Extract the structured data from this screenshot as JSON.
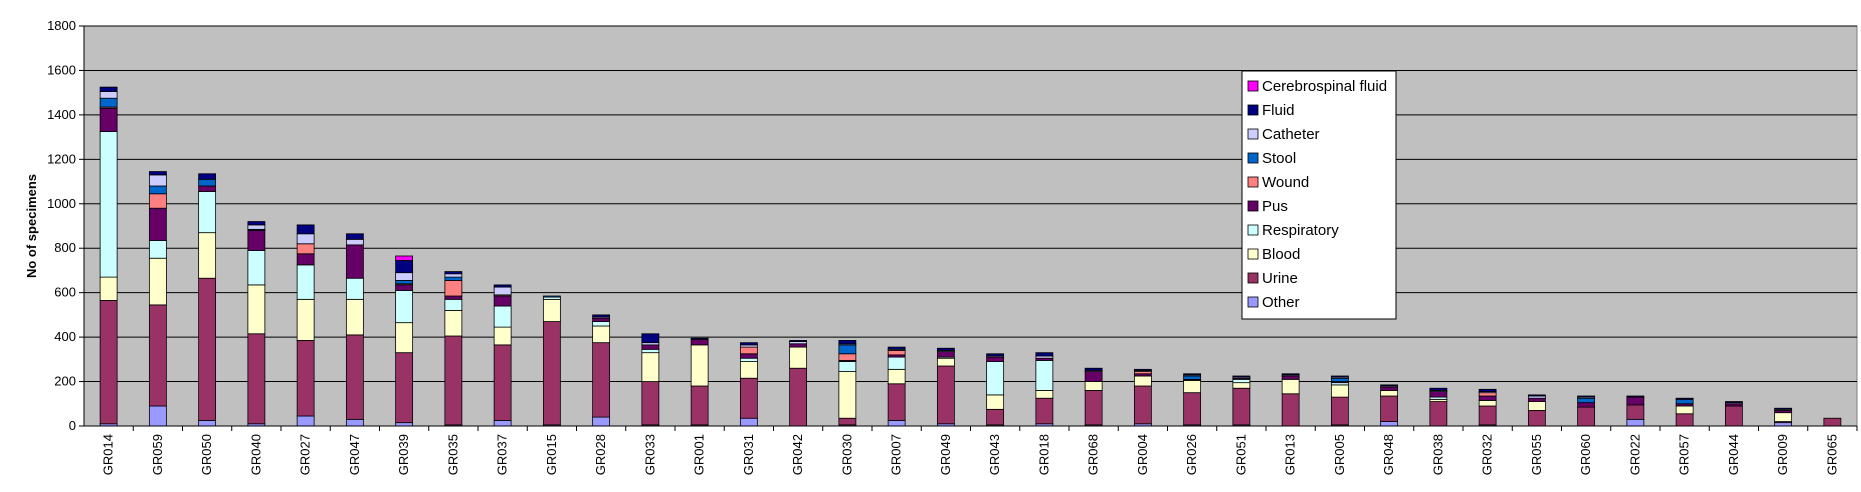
{
  "chart_data": {
    "type": "bar",
    "stacked": true,
    "ylabel": "No of specimens",
    "xlabel": "",
    "ylim": [
      0,
      1800
    ],
    "yticks": [
      0,
      200,
      400,
      600,
      800,
      1000,
      1200,
      1400,
      1600,
      1800
    ],
    "grid": true,
    "legend_position": "right",
    "categories": [
      "GR014",
      "GR059",
      "GR050",
      "GR040",
      "GR027",
      "GR047",
      "GR039",
      "GR035",
      "GR037",
      "GR015",
      "GR028",
      "GR033",
      "GR001",
      "GR031",
      "GR042",
      "GR030",
      "GR007",
      "GR049",
      "GR043",
      "GR018",
      "GR068",
      "GR004",
      "GR026",
      "GR051",
      "GR013",
      "GR005",
      "GR048",
      "GR038",
      "GR032",
      "GR055",
      "GR060",
      "GR022",
      "GR057",
      "GR044",
      "GR009",
      "GR065"
    ],
    "series": [
      {
        "name": "Other",
        "color": "#9999ff",
        "values": [
          10,
          90,
          25,
          10,
          45,
          30,
          15,
          5,
          25,
          5,
          40,
          5,
          5,
          35,
          0,
          5,
          25,
          10,
          5,
          10,
          5,
          10,
          5,
          5,
          0,
          5,
          20,
          0,
          5,
          0,
          0,
          30,
          0,
          0,
          15,
          0
        ]
      },
      {
        "name": "Urine",
        "color": "#993366",
        "values": [
          555,
          455,
          640,
          405,
          340,
          380,
          315,
          400,
          340,
          465,
          335,
          195,
          175,
          180,
          260,
          30,
          165,
          260,
          70,
          115,
          155,
          170,
          145,
          165,
          145,
          125,
          115,
          110,
          85,
          70,
          85,
          65,
          55,
          90,
          5,
          35
        ]
      },
      {
        "name": "Blood",
        "color": "#ffffcc",
        "values": [
          105,
          210,
          205,
          220,
          185,
          160,
          135,
          115,
          80,
          100,
          75,
          130,
          185,
          75,
          95,
          210,
          65,
          35,
          65,
          35,
          40,
          45,
          55,
          25,
          65,
          55,
          25,
          10,
          25,
          40,
          0,
          0,
          35,
          0,
          40,
          0
        ]
      },
      {
        "name": "Respiratory",
        "color": "#ccffff",
        "values": [
          655,
          80,
          185,
          155,
          155,
          95,
          145,
          50,
          95,
          10,
          20,
          15,
          0,
          15,
          0,
          45,
          55,
          5,
          150,
          135,
          0,
          0,
          0,
          15,
          0,
          10,
          0,
          10,
          0,
          0,
          0,
          0,
          0,
          0,
          0,
          0
        ]
      },
      {
        "name": "Pus",
        "color": "#660066",
        "values": [
          105,
          145,
          25,
          90,
          50,
          150,
          25,
          15,
          45,
          0,
          15,
          20,
          25,
          20,
          15,
          5,
          10,
          25,
          20,
          10,
          45,
          10,
          5,
          5,
          15,
          5,
          15,
          25,
          20,
          15,
          20,
          35,
          10,
          10,
          10,
          0
        ]
      },
      {
        "name": "Wound",
        "color": "#ff8080",
        "values": [
          5,
          65,
          0,
          0,
          45,
          0,
          5,
          70,
          5,
          0,
          0,
          0,
          0,
          30,
          0,
          30,
          20,
          0,
          0,
          0,
          0,
          10,
          0,
          0,
          0,
          0,
          0,
          0,
          15,
          0,
          0,
          0,
          0,
          0,
          0,
          0
        ]
      },
      {
        "name": "Stool",
        "color": "#0066cc",
        "values": [
          40,
          35,
          30,
          5,
          0,
          0,
          15,
          15,
          0,
          5,
          0,
          0,
          0,
          0,
          0,
          40,
          0,
          0,
          0,
          0,
          0,
          0,
          15,
          0,
          0,
          15,
          0,
          0,
          0,
          0,
          20,
          0,
          20,
          0,
          0,
          0
        ]
      },
      {
        "name": "Catheter",
        "color": "#ccccff",
        "values": [
          30,
          50,
          0,
          20,
          45,
          25,
          35,
          15,
          35,
          0,
          5,
          10,
          0,
          10,
          10,
          5,
          5,
          5,
          5,
          10,
          5,
          5,
          5,
          5,
          5,
          5,
          5,
          5,
          5,
          10,
          5,
          0,
          0,
          5,
          5,
          0
        ]
      },
      {
        "name": "Fluid",
        "color": "#000080",
        "values": [
          20,
          15,
          25,
          15,
          40,
          25,
          55,
          10,
          10,
          0,
          10,
          40,
          5,
          10,
          5,
          15,
          10,
          10,
          10,
          15,
          10,
          5,
          5,
          5,
          5,
          5,
          5,
          10,
          10,
          5,
          5,
          5,
          5,
          5,
          5,
          0
        ]
      },
      {
        "name": "Cerebrospinal fluid",
        "color": "#ff00ff",
        "values": [
          0,
          0,
          0,
          0,
          0,
          0,
          20,
          0,
          0,
          0,
          0,
          0,
          0,
          0,
          0,
          0,
          0,
          0,
          0,
          0,
          0,
          0,
          0,
          0,
          0,
          0,
          0,
          0,
          0,
          0,
          0,
          0,
          0,
          0,
          0,
          0
        ]
      }
    ],
    "colors": {
      "plot_background": "#c0c0c0",
      "gridline": "#000000"
    }
  }
}
